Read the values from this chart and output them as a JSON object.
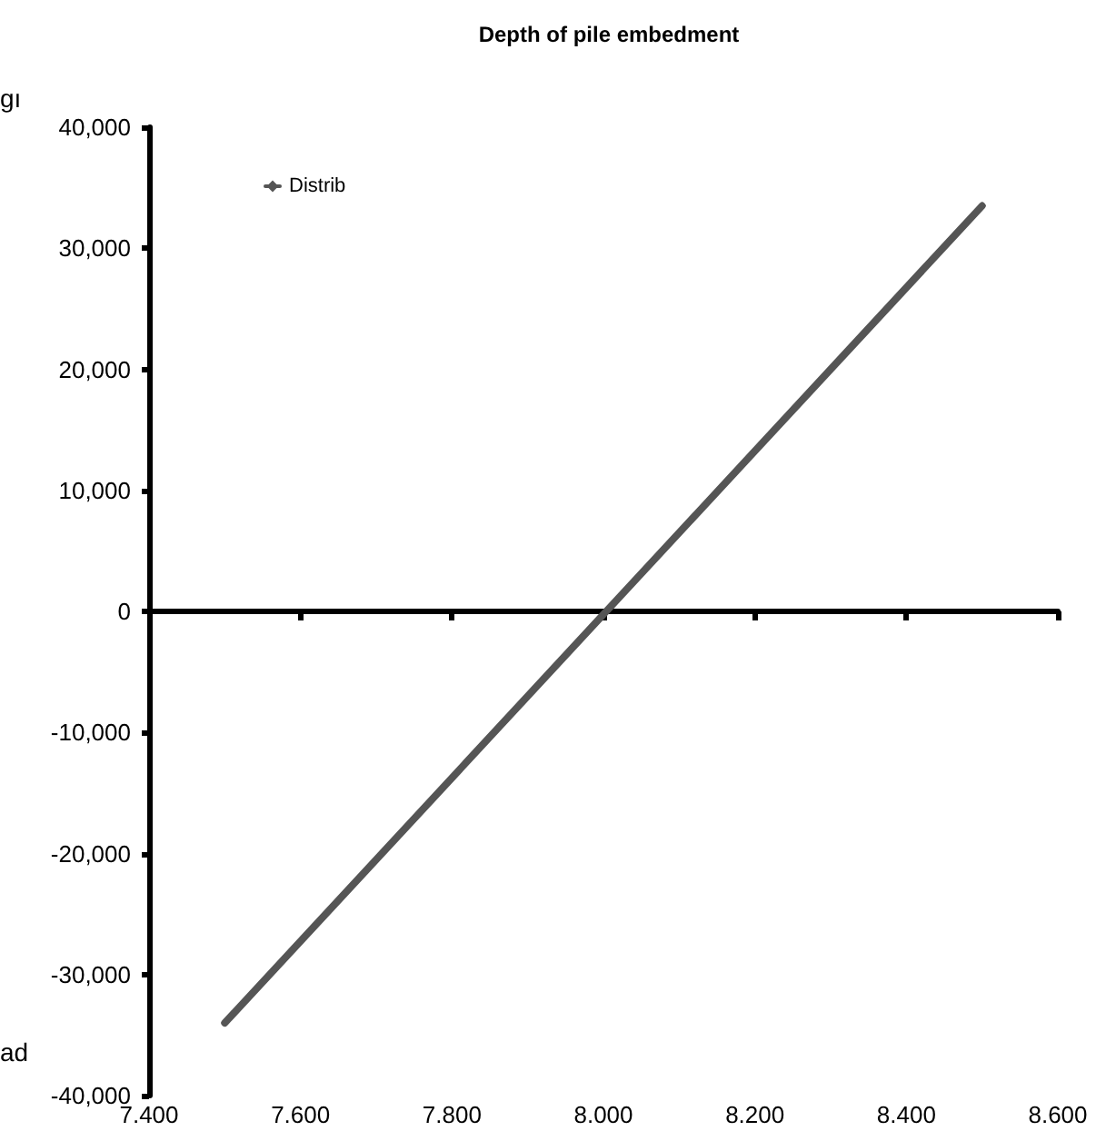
{
  "chart_data": {
    "type": "line",
    "title": "Depth of pile embedment",
    "x": [
      7.5,
      8.5
    ],
    "series": [
      {
        "name": "Distrib",
        "color": "#555555",
        "values": [
          -34000,
          33500
        ]
      }
    ],
    "xlim": [
      7.4,
      8.6
    ],
    "xticks": [
      {
        "value": 7.4,
        "label": "7.400"
      },
      {
        "value": 7.6,
        "label": "7.600"
      },
      {
        "value": 7.8,
        "label": "7.800"
      },
      {
        "value": 8.0,
        "label": "8.000"
      },
      {
        "value": 8.2,
        "label": "8.200"
      },
      {
        "value": 8.4,
        "label": "8.400"
      },
      {
        "value": 8.6,
        "label": "8.600"
      }
    ],
    "ylim": [
      -40000,
      40000
    ],
    "yticks": [
      {
        "value": -40000,
        "label": "-40,000"
      },
      {
        "value": -30000,
        "label": "-30,000"
      },
      {
        "value": -20000,
        "label": "-20,000"
      },
      {
        "value": -10000,
        "label": "-10,000"
      },
      {
        "value": 0,
        "label": "0"
      },
      {
        "value": 10000,
        "label": "10,000"
      },
      {
        "value": 20000,
        "label": "20,000"
      },
      {
        "value": 30000,
        "label": "30,000"
      },
      {
        "value": 40000,
        "label": "40,000"
      }
    ],
    "annotations": [
      "gı",
      "ad"
    ],
    "legend": "top left",
    "marker": "diamond",
    "line_style": "solid"
  }
}
